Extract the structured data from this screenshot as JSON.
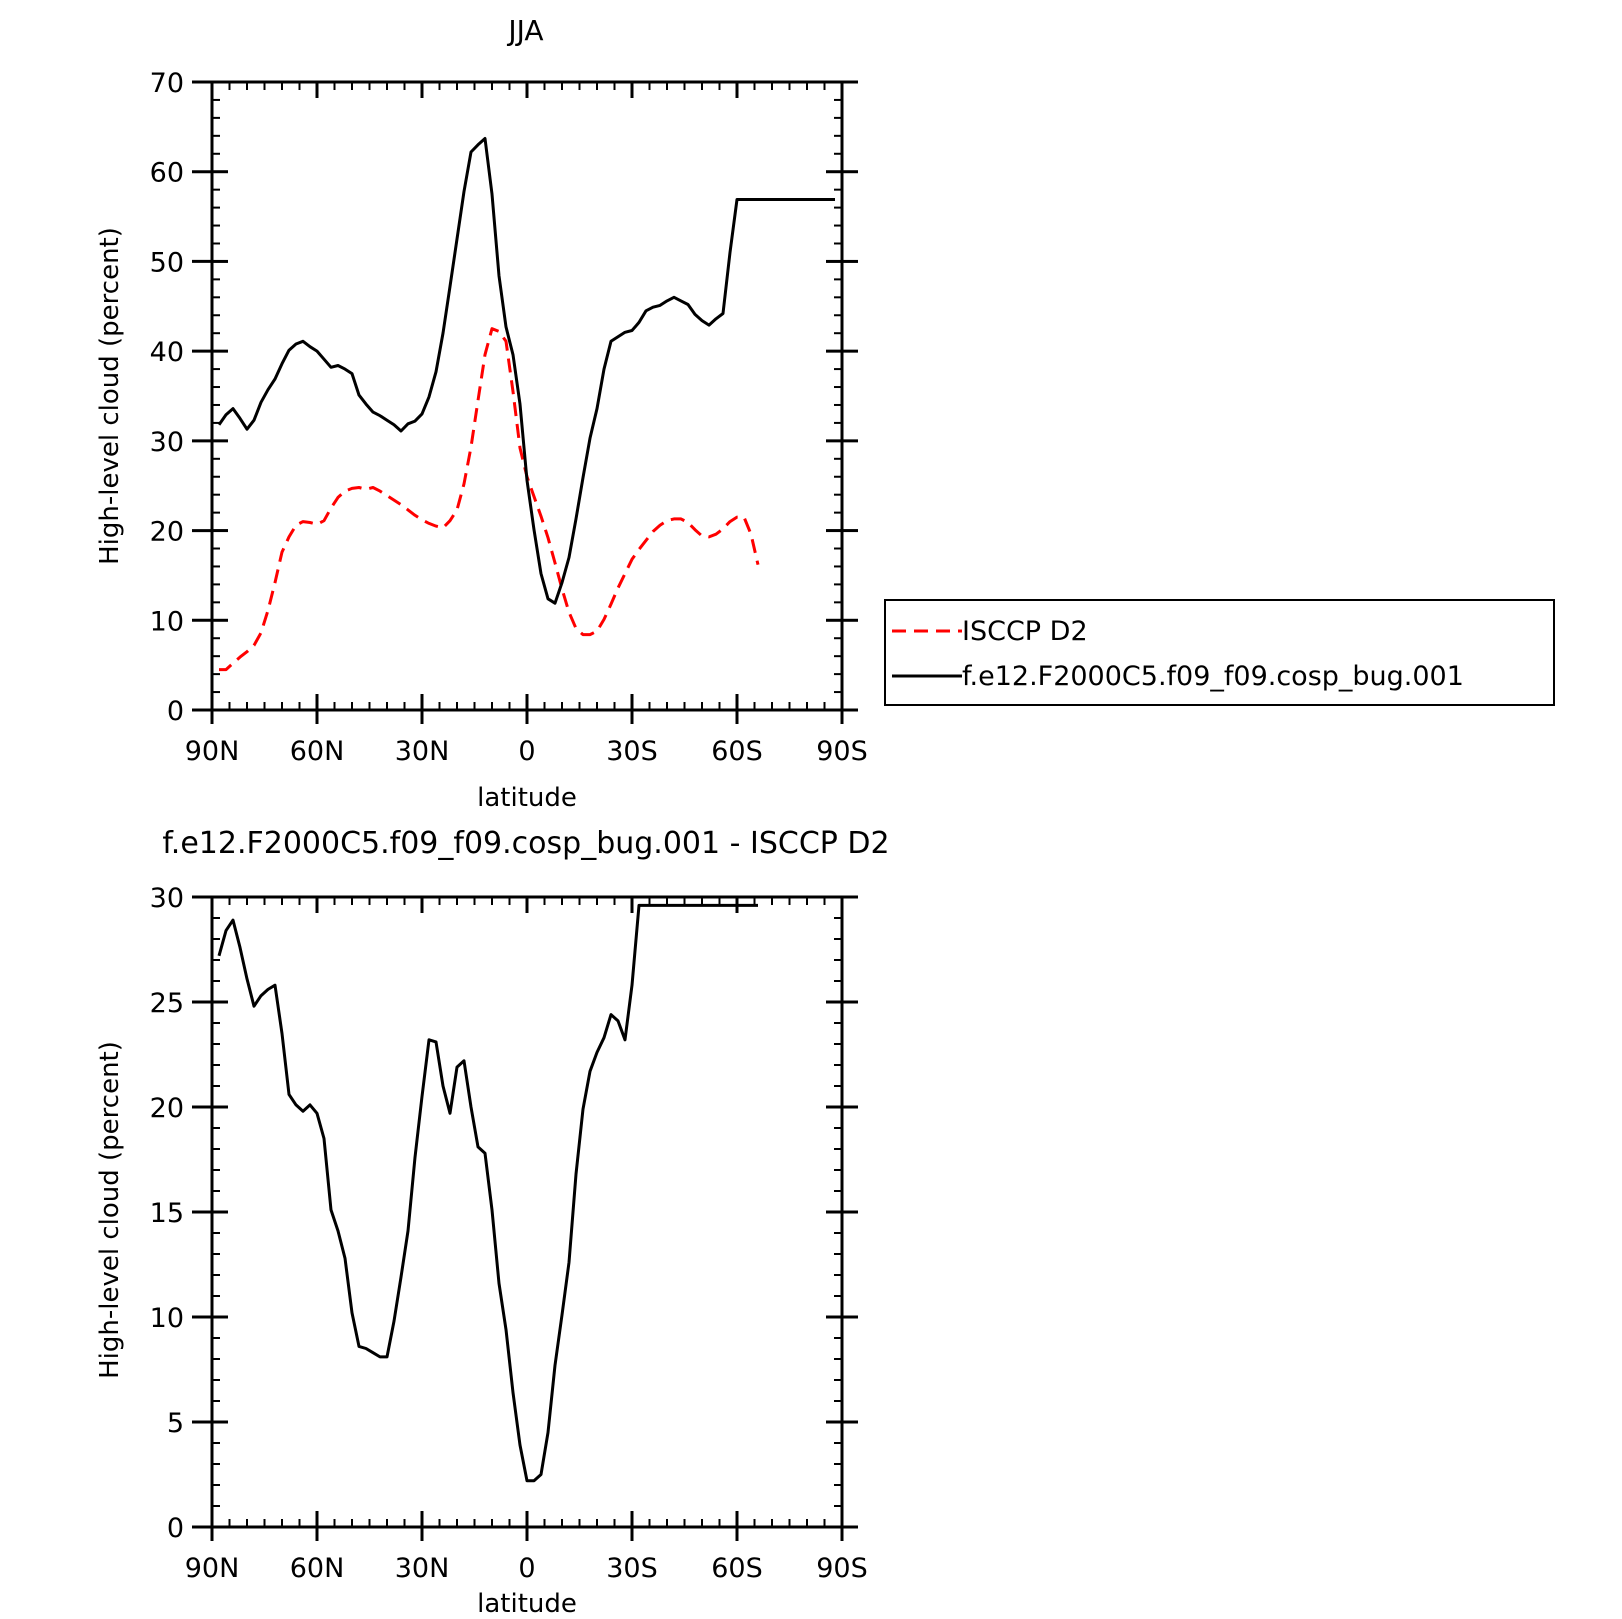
{
  "chart_data": [
    {
      "type": "line",
      "title": "JJA",
      "xlabel": "latitude",
      "ylabel": "High-level cloud (percent)",
      "xlim": [
        90,
        -90
      ],
      "ylim": [
        0,
        70
      ],
      "x_ticks": [
        {
          "value": 90,
          "label": "90N"
        },
        {
          "value": 60,
          "label": "60N"
        },
        {
          "value": 30,
          "label": "30N"
        },
        {
          "value": 0,
          "label": "0"
        },
        {
          "value": -30,
          "label": "30S"
        },
        {
          "value": -60,
          "label": "60S"
        },
        {
          "value": -90,
          "label": "90S"
        }
      ],
      "y_ticks": [
        0,
        10,
        20,
        30,
        40,
        50,
        60,
        70
      ],
      "legend_position": "right",
      "series": [
        {
          "name": "ISCCP D2",
          "color": "#ff0000",
          "dash": "dashed",
          "x": [
            88,
            86,
            84,
            82,
            80,
            78,
            76,
            74,
            72,
            70,
            68,
            66,
            64,
            62,
            60,
            58,
            56,
            54,
            52,
            50,
            48,
            46,
            44,
            42,
            40,
            38,
            36,
            34,
            32,
            30,
            28,
            26,
            24,
            22,
            20,
            18,
            16,
            14,
            12,
            10,
            8,
            6,
            4,
            2,
            0,
            -2,
            -4,
            -6,
            -8,
            -10,
            -12,
            -14,
            -16,
            -18,
            -20,
            -22,
            -24,
            -26,
            -28,
            -30,
            -32,
            -34,
            -36,
            -38,
            -40,
            -42,
            -44,
            -46,
            -48,
            -50,
            -52,
            -54,
            -56,
            -58,
            -60,
            -62,
            -64,
            -66
          ],
          "y": [
            4.5,
            4.5,
            5.2,
            5.9,
            6.5,
            7.2,
            8.6,
            11.1,
            14.2,
            17.6,
            19.3,
            20.6,
            21.0,
            20.9,
            20.7,
            21.1,
            22.5,
            23.7,
            24.4,
            24.7,
            24.8,
            24.6,
            24.8,
            24.4,
            23.9,
            23.4,
            22.9,
            22.3,
            21.7,
            21.2,
            20.8,
            20.5,
            20.3,
            21.1,
            22.3,
            25.2,
            29.3,
            34.5,
            39.6,
            42.5,
            42.2,
            41.1,
            35.5,
            29.2,
            26.0,
            23.8,
            21.6,
            19.2,
            16.4,
            13.5,
            10.9,
            9.1,
            8.4,
            8.4,
            8.8,
            10.1,
            11.8,
            13.6,
            15.2,
            16.8,
            17.9,
            18.9,
            19.9,
            20.6,
            21.1,
            21.3,
            21.3,
            20.9,
            20.1,
            19.4,
            19.3,
            19.6,
            20.2,
            21.0,
            21.5,
            21.5,
            19.6,
            16.2
          ]
        },
        {
          "name": "f.e12.F2000C5.f09_f09.cosp_bug.001",
          "color": "#000000",
          "dash": "solid",
          "x": [
            88,
            86,
            84,
            82,
            80,
            78,
            76,
            74,
            72,
            70,
            68,
            66,
            64,
            62,
            60,
            58,
            56,
            54,
            52,
            50,
            48,
            46,
            44,
            42,
            40,
            38,
            36,
            34,
            32,
            30,
            28,
            26,
            24,
            22,
            20,
            18,
            16,
            14,
            12,
            10,
            8,
            6,
            4,
            2,
            0,
            -2,
            -4,
            -6,
            -8,
            -10,
            -12,
            -14,
            -16,
            -18,
            -20,
            -22,
            -24,
            -26,
            -28,
            -30,
            -32,
            -34,
            -36,
            -38,
            -40,
            -42,
            -44,
            -46,
            -48,
            -50,
            -52,
            -54,
            -56,
            -58,
            -60,
            -62,
            -64,
            -66,
            -68,
            -70,
            -72,
            -74,
            -76,
            -78,
            -80,
            -82,
            -84,
            -86,
            -88
          ],
          "y": [
            31.8,
            32.9,
            33.6,
            32.5,
            31.3,
            32.3,
            34.3,
            35.7,
            36.9,
            38.6,
            40.1,
            40.8,
            41.1,
            40.5,
            40.0,
            39.1,
            38.2,
            38.4,
            38.0,
            37.5,
            35.1,
            34.1,
            33.2,
            32.8,
            32.3,
            31.8,
            31.1,
            31.9,
            32.2,
            33.0,
            34.9,
            37.7,
            42.0,
            47.2,
            52.5,
            57.8,
            62.2,
            63.0,
            63.7,
            57.5,
            48.4,
            42.7,
            39.6,
            34.1,
            25.6,
            20.1,
            15.2,
            12.4,
            11.9,
            14.2,
            17.0,
            21.3,
            25.9,
            30.3,
            33.6,
            38.0,
            41.1,
            41.6,
            42.1,
            42.3,
            43.2,
            44.5,
            44.9,
            45.1,
            45.6,
            46.0,
            45.6,
            45.2,
            44.1,
            43.4,
            42.9,
            43.6,
            44.2,
            51.0,
            56.9,
            56.9,
            56.9,
            56.9,
            56.9,
            56.9,
            56.9,
            56.9,
            56.9,
            56.9,
            56.9,
            56.9,
            56.9,
            56.9,
            56.9
          ]
        }
      ]
    },
    {
      "type": "line",
      "title": "f.e12.F2000C5.f09_f09.cosp_bug.001 - ISCCP D2",
      "xlabel": "latitude",
      "ylabel": "High-level cloud (percent)",
      "xlim": [
        90,
        -90
      ],
      "ylim": [
        0,
        30
      ],
      "x_ticks": [
        {
          "value": 90,
          "label": "90N"
        },
        {
          "value": 60,
          "label": "60N"
        },
        {
          "value": 30,
          "label": "30N"
        },
        {
          "value": 0,
          "label": "0"
        },
        {
          "value": -30,
          "label": "30S"
        },
        {
          "value": -60,
          "label": "60S"
        },
        {
          "value": -90,
          "label": "90S"
        }
      ],
      "y_ticks": [
        0,
        5,
        10,
        15,
        20,
        25,
        30
      ],
      "series": [
        {
          "color": "#000000",
          "dash": "solid",
          "x": [
            88,
            86,
            84,
            82,
            80,
            78,
            76,
            74,
            72,
            70,
            68,
            66,
            64,
            62,
            60,
            58,
            56,
            54,
            52,
            50,
            48,
            46,
            44,
            42,
            40,
            38,
            36,
            34,
            32,
            30,
            28,
            26,
            24,
            22,
            20,
            18,
            16,
            14,
            12,
            10,
            8,
            6,
            4,
            2,
            0,
            -2,
            -4,
            -6,
            -8,
            -10,
            -12,
            -14,
            -16,
            -18,
            -20,
            -22,
            -24,
            -26,
            -28,
            -30,
            -32,
            -34,
            -36,
            -38,
            -40,
            -42,
            -44,
            -46,
            -48,
            -50,
            -52,
            -54,
            -56,
            -58,
            -60,
            -62,
            -64,
            -66
          ],
          "y": [
            27.2,
            28.4,
            28.9,
            27.6,
            26.1,
            24.8,
            25.3,
            25.6,
            25.8,
            23.5,
            20.6,
            20.1,
            19.8,
            20.1,
            19.7,
            18.5,
            15.1,
            14.1,
            12.8,
            10.2,
            8.6,
            8.5,
            8.3,
            8.1,
            8.1,
            9.8,
            11.9,
            14.1,
            17.6,
            20.5,
            23.2,
            23.1,
            21.0,
            19.7,
            21.9,
            22.2,
            20.0,
            18.1,
            17.8,
            15.1,
            11.6,
            9.4,
            6.4,
            3.9,
            2.2,
            2.2,
            2.5,
            4.5,
            7.7,
            10.1,
            12.6,
            16.8,
            19.9,
            21.7,
            22.6,
            23.3,
            24.4,
            24.1,
            23.2,
            25.8,
            29.6,
            29.6,
            29.6,
            29.6,
            29.6,
            29.6,
            29.6,
            29.6,
            29.6,
            29.6,
            29.6,
            29.6,
            29.6,
            29.6,
            29.6,
            29.6,
            29.6,
            29.6
          ]
        }
      ]
    }
  ]
}
